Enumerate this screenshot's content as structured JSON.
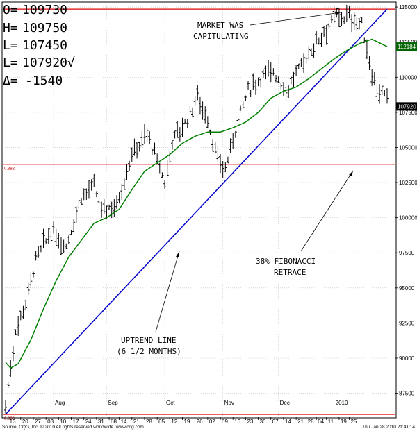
{
  "ohlc_readout": [
    {
      "label": "O=",
      "value": "109730"
    },
    {
      "label": "H=",
      "value": "109750"
    },
    {
      "label": "L=",
      "value": "107450"
    },
    {
      "label": "L=",
      "value": "107920√"
    },
    {
      "label": "Δ=",
      "value": "-1540"
    }
  ],
  "annotations": {
    "capitulating": [
      "MARKET WAS",
      "CAPITULATING"
    ],
    "fibonacci": [
      "38% FIBONACCI",
      "RETRACE"
    ],
    "uptrend": [
      "UPTREND LINE",
      "(6 1/2 MONTHS)"
    ]
  },
  "footer": {
    "left": "Source: CQG, Inc. © 2010 All rights reserved worldwide. www.cqg.com",
    "right": "Thu Jan 28 2010 21:41:14"
  },
  "colors": {
    "background": "#ffffff",
    "bars": "#000000",
    "moving_average": "#008000",
    "trend_line": "#0000cc",
    "level_lines": "#dd0000",
    "grid": "#c0c0c0",
    "ma_box": "#006400"
  },
  "chart_data": {
    "type": "ohlc",
    "y_ticks": [
      87500,
      90000,
      92500,
      95000,
      97500,
      100000,
      102500,
      105000,
      107500,
      110000,
      112500,
      115000
    ],
    "ylim": [
      85800,
      115300
    ],
    "grid": true,
    "price_boxes": [
      {
        "label": "112184",
        "value": 112184,
        "color": "#006400"
      },
      {
        "label": "107920",
        "value": 107920,
        "color": "#000000"
      }
    ],
    "horizontal_levels": [
      {
        "value": 114850,
        "label": ""
      },
      {
        "value": 103800,
        "label": "0.382"
      },
      {
        "value": 86000,
        "label": "0.000"
      }
    ],
    "trend_line": {
      "from": {
        "x": 0,
        "y": 86000
      },
      "to": {
        "x": 151,
        "y": 114850
      }
    },
    "months": [
      {
        "label": "Aug",
        "x": 19
      },
      {
        "label": "Sep",
        "x": 40
      },
      {
        "label": "Oct",
        "x": 63
      },
      {
        "label": "Nov",
        "x": 86
      },
      {
        "label": "Dec",
        "x": 108
      },
      {
        "label": "2010",
        "x": 130
      }
    ],
    "day_ticks": [
      {
        "label": "13",
        "x": 1
      },
      {
        "label": "20",
        "x": 6
      },
      {
        "label": "27",
        "x": 11
      },
      {
        "label": "03",
        "x": 16
      },
      {
        "label": "10",
        "x": 21
      },
      {
        "label": "17",
        "x": 26
      },
      {
        "label": "24",
        "x": 31
      },
      {
        "label": "31",
        "x": 36
      },
      {
        "label": "08",
        "x": 41
      },
      {
        "label": "14",
        "x": 45
      },
      {
        "label": "21",
        "x": 50
      },
      {
        "label": "28",
        "x": 55
      },
      {
        "label": "05",
        "x": 60
      },
      {
        "label": "12",
        "x": 65
      },
      {
        "label": "19",
        "x": 70
      },
      {
        "label": "26",
        "x": 75
      },
      {
        "label": "02",
        "x": 80
      },
      {
        "label": "09",
        "x": 85
      },
      {
        "label": "16",
        "x": 90
      },
      {
        "label": "23",
        "x": 95
      },
      {
        "label": "30",
        "x": 100
      },
      {
        "label": "07",
        "x": 105
      },
      {
        "label": "14",
        "x": 110
      },
      {
        "label": "21",
        "x": 115
      },
      {
        "label": "28",
        "x": 119
      },
      {
        "label": "04",
        "x": 123
      },
      {
        "label": "11",
        "x": 127
      },
      {
        "label": "19",
        "x": 132
      },
      {
        "label": "25",
        "x": 136
      }
    ],
    "x_max": 151,
    "price_key_points": [
      {
        "x": 0,
        "p": 86700
      },
      {
        "x": 4,
        "p": 92000
      },
      {
        "x": 8,
        "p": 94000
      },
      {
        "x": 12,
        "p": 97000
      },
      {
        "x": 18,
        "p": 99000
      },
      {
        "x": 24,
        "p": 98000
      },
      {
        "x": 30,
        "p": 101500
      },
      {
        "x": 35,
        "p": 102200
      },
      {
        "x": 38,
        "p": 100500
      },
      {
        "x": 44,
        "p": 101000
      },
      {
        "x": 50,
        "p": 104500
      },
      {
        "x": 56,
        "p": 106000
      },
      {
        "x": 60,
        "p": 104000
      },
      {
        "x": 63,
        "p": 102500
      },
      {
        "x": 66,
        "p": 105500
      },
      {
        "x": 72,
        "p": 107000
      },
      {
        "x": 76,
        "p": 108700
      },
      {
        "x": 80,
        "p": 107000
      },
      {
        "x": 84,
        "p": 104000
      },
      {
        "x": 87,
        "p": 103500
      },
      {
        "x": 92,
        "p": 107000
      },
      {
        "x": 96,
        "p": 109000
      },
      {
        "x": 101,
        "p": 110000
      },
      {
        "x": 106,
        "p": 110500
      },
      {
        "x": 111,
        "p": 109000
      },
      {
        "x": 116,
        "p": 110500
      },
      {
        "x": 121,
        "p": 112000
      },
      {
        "x": 126,
        "p": 113300
      },
      {
        "x": 131,
        "p": 114300
      },
      {
        "x": 136,
        "p": 114300
      },
      {
        "x": 141,
        "p": 113700
      },
      {
        "x": 143,
        "p": 112000
      },
      {
        "x": 145,
        "p": 110300
      },
      {
        "x": 148,
        "p": 109000
      },
      {
        "x": 151,
        "p": 108300
      }
    ],
    "moving_average": [
      {
        "x": 0,
        "y": 89700
      },
      {
        "x": 2,
        "y": 89300
      },
      {
        "x": 5,
        "y": 89600
      },
      {
        "x": 10,
        "y": 91300
      },
      {
        "x": 15,
        "y": 93500
      },
      {
        "x": 20,
        "y": 95500
      },
      {
        "x": 25,
        "y": 97200
      },
      {
        "x": 30,
        "y": 98400
      },
      {
        "x": 35,
        "y": 99600
      },
      {
        "x": 40,
        "y": 100000
      },
      {
        "x": 45,
        "y": 100600
      },
      {
        "x": 50,
        "y": 102000
      },
      {
        "x": 55,
        "y": 103300
      },
      {
        "x": 60,
        "y": 103900
      },
      {
        "x": 65,
        "y": 104500
      },
      {
        "x": 70,
        "y": 105300
      },
      {
        "x": 75,
        "y": 105800
      },
      {
        "x": 80,
        "y": 106100
      },
      {
        "x": 85,
        "y": 106100
      },
      {
        "x": 90,
        "y": 106400
      },
      {
        "x": 95,
        "y": 106800
      },
      {
        "x": 100,
        "y": 107500
      },
      {
        "x": 105,
        "y": 108500
      },
      {
        "x": 110,
        "y": 109000
      },
      {
        "x": 115,
        "y": 109300
      },
      {
        "x": 120,
        "y": 109900
      },
      {
        "x": 125,
        "y": 110600
      },
      {
        "x": 130,
        "y": 111300
      },
      {
        "x": 135,
        "y": 111900
      },
      {
        "x": 140,
        "y": 112400
      },
      {
        "x": 145,
        "y": 112700
      },
      {
        "x": 151,
        "y": 112184
      }
    ]
  }
}
